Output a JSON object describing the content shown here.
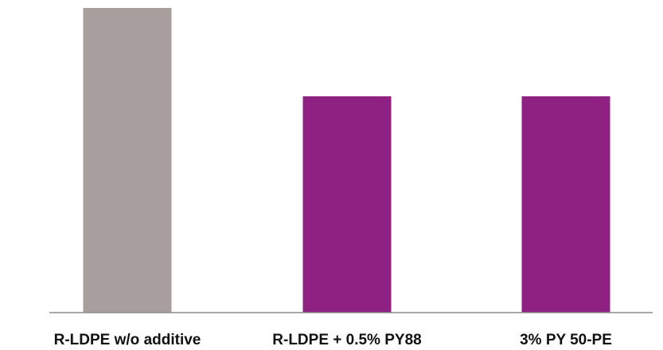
{
  "chart_data": {
    "type": "bar",
    "categories": [
      "R-LDPE w/o additive",
      "R-LDPE + 0.5% PY88",
      "3% PY 50-PE"
    ],
    "values": [
      100,
      71,
      71
    ],
    "colors": [
      "#a89e9e",
      "#8f2183",
      "#8f2183"
    ],
    "ylim": [
      0,
      100
    ],
    "grid": false,
    "legend": "none",
    "title": "",
    "xlabel": "",
    "ylabel": ""
  },
  "style": {
    "axis_color": "#8c8c8c",
    "label_color": "#111111"
  }
}
